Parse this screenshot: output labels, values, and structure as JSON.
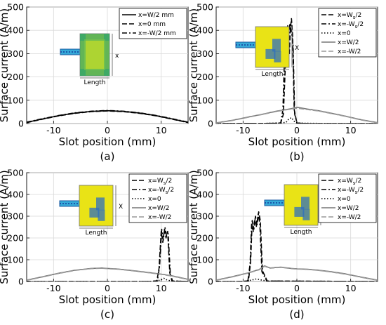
{
  "figure": {
    "panel_labels": [
      "(a)",
      "(b)",
      "(c)",
      "(d)"
    ]
  },
  "chart_data": [
    {
      "type": "line",
      "panel": "(a)",
      "xlabel": "Slot position (mm)",
      "ylabel": "Surface current (A/m)",
      "xlim": [
        -15,
        15
      ],
      "ylim": [
        0,
        500
      ],
      "xticks": [
        -10,
        0,
        10
      ],
      "yticks": [
        0,
        100,
        200,
        300,
        400,
        500
      ],
      "grid": true,
      "legend_position": "top-right",
      "inset": {
        "x_label": "x",
        "length_label": "Length"
      },
      "series": [
        {
          "name": "x=W/2 mm",
          "style": "solid",
          "color": "#000000",
          "x": [
            -15,
            -12,
            -9,
            -6,
            -3,
            -1,
            0,
            1,
            3,
            6,
            9,
            12,
            15
          ],
          "y": [
            5,
            20,
            34,
            45,
            52,
            54,
            55,
            54,
            52,
            45,
            34,
            20,
            5
          ]
        },
        {
          "name": "x=0 mm",
          "style": "dashed",
          "color": "#000000",
          "x": [
            -15,
            -12,
            -9,
            -6,
            -3,
            -1,
            0,
            1,
            3,
            6,
            9,
            12,
            15
          ],
          "y": [
            4,
            19,
            33,
            44,
            51,
            53,
            54,
            53,
            51,
            44,
            33,
            19,
            4
          ]
        },
        {
          "name": "x=-W/2 mm",
          "style": "dashdot",
          "color": "#000000",
          "x": [
            -15,
            -12,
            -9,
            -6,
            -3,
            -1,
            0,
            1,
            3,
            6,
            9,
            12,
            15
          ],
          "y": [
            6,
            21,
            35,
            46,
            53,
            55,
            56,
            55,
            53,
            46,
            35,
            21,
            6
          ]
        }
      ]
    },
    {
      "type": "line",
      "panel": "(b)",
      "xlabel": "Slot position (mm)",
      "ylabel": "Surface current (A/m)",
      "xlim": [
        -15,
        15
      ],
      "ylim": [
        0,
        500
      ],
      "xticks": [
        -10,
        0,
        10
      ],
      "yticks": [
        0,
        100,
        200,
        300,
        400,
        500
      ],
      "grid": true,
      "legend_position": "top-right",
      "inset": {
        "x_label": "X",
        "length_label": "Length"
      },
      "series": [
        {
          "name": "x=Ws/2",
          "legend_main": "x=W",
          "legend_sub": "s",
          "legend_tail": "/2",
          "style": "dashed",
          "color": "#000000",
          "x": [
            -15,
            -4,
            -3,
            -2.5,
            -2,
            -1.7,
            -1.4,
            -1.2,
            -1,
            -0.8,
            -0.5,
            0,
            2,
            15
          ],
          "y": [
            0,
            1,
            3,
            40,
            330,
            420,
            300,
            410,
            450,
            380,
            60,
            2,
            0,
            0
          ]
        },
        {
          "name": "x=-Ws/2",
          "legend_main": "x=-W",
          "legend_sub": "s",
          "legend_tail": "/2",
          "style": "dashdot",
          "color": "#000000",
          "x": [
            -15,
            -4,
            -3,
            -2.6,
            -2.2,
            -1.9,
            -1.6,
            -1.3,
            -1,
            -0.7,
            -0.4,
            0,
            2,
            15
          ],
          "y": [
            0,
            1,
            3,
            60,
            360,
            400,
            310,
            430,
            390,
            340,
            40,
            2,
            0,
            0
          ]
        },
        {
          "name": "x=0",
          "legend_main": "x=0",
          "style": "dotted",
          "color": "#000000",
          "x": [
            -15,
            -10,
            -5,
            -3,
            -2,
            -1.5,
            -1,
            -0.5,
            0,
            3,
            10,
            15
          ],
          "y": [
            0,
            0,
            1,
            2,
            5,
            20,
            25,
            10,
            2,
            1,
            0,
            0
          ]
        },
        {
          "name": "x=W/2",
          "legend_main": "x=W/2",
          "style": "solid",
          "color": "#777777",
          "x": [
            -15,
            -12,
            -9,
            -6,
            -4,
            -2,
            -1,
            0,
            2,
            4,
            6,
            9,
            12,
            15
          ],
          "y": [
            3,
            14,
            28,
            42,
            52,
            60,
            64,
            70,
            62,
            55,
            46,
            32,
            16,
            4
          ]
        },
        {
          "name": "x=-W/2",
          "legend_main": "x=-W/2",
          "style": "dashed",
          "color": "#999999",
          "x": [
            -15,
            -12,
            -9,
            -6,
            -4,
            -2,
            -1,
            0,
            2,
            4,
            6,
            9,
            12,
            15
          ],
          "y": [
            2,
            13,
            27,
            41,
            51,
            59,
            62,
            66,
            60,
            54,
            45,
            31,
            15,
            3
          ]
        }
      ]
    },
    {
      "type": "line",
      "panel": "(c)",
      "xlabel": "Slot position (mm)",
      "ylabel": "Surface current (A/m)",
      "xlim": [
        -15,
        15
      ],
      "ylim": [
        0,
        500
      ],
      "xticks": [
        -10,
        0,
        10
      ],
      "yticks": [
        0,
        100,
        200,
        300,
        400,
        500
      ],
      "grid": true,
      "legend_position": "top-right",
      "inset": {
        "x_label": "X",
        "length_label": "Length"
      },
      "series": [
        {
          "name": "x=Ws/2",
          "legend_main": "x=W",
          "legend_sub": "s",
          "legend_tail": "/2",
          "style": "dashed",
          "color": "#000000",
          "x": [
            -15,
            8,
            9.2,
            9.6,
            10,
            10.3,
            10.6,
            10.9,
            11.2,
            11.6,
            12,
            15
          ],
          "y": [
            0,
            0,
            3,
            60,
            230,
            180,
            240,
            200,
            230,
            40,
            2,
            0
          ]
        },
        {
          "name": "x=-Ws/2",
          "legend_main": "x=-W",
          "legend_sub": "s",
          "legend_tail": "/2",
          "style": "dashdot",
          "color": "#000000",
          "x": [
            -15,
            8,
            9.3,
            9.7,
            10.1,
            10.4,
            10.7,
            11,
            11.3,
            11.7,
            12.1,
            15
          ],
          "y": [
            0,
            0,
            3,
            70,
            240,
            190,
            250,
            210,
            220,
            35,
            2,
            0
          ]
        },
        {
          "name": "x=0",
          "legend_main": "x=0",
          "style": "dotted",
          "color": "#000000",
          "x": [
            -15,
            5,
            9,
            10,
            10.5,
            11,
            12,
            15
          ],
          "y": [
            0,
            0,
            1,
            8,
            15,
            8,
            1,
            0
          ]
        },
        {
          "name": "x=W/2",
          "legend_main": "x=W/2",
          "style": "solid",
          "color": "#777777",
          "x": [
            -15,
            -12,
            -9,
            -6,
            -3,
            -1,
            0,
            2,
            4,
            6,
            8,
            10,
            12,
            15
          ],
          "y": [
            6,
            22,
            38,
            52,
            60,
            62,
            60,
            57,
            52,
            46,
            40,
            34,
            26,
            10
          ]
        },
        {
          "name": "x=-W/2",
          "legend_main": "x=-W/2",
          "style": "dashed",
          "color": "#999999",
          "x": [
            -15,
            -12,
            -9,
            -6,
            -3,
            -1,
            0,
            2,
            4,
            6,
            8,
            10,
            12,
            15
          ],
          "y": [
            5,
            21,
            37,
            51,
            59,
            61,
            59,
            56,
            51,
            45,
            39,
            33,
            25,
            9
          ]
        }
      ]
    },
    {
      "type": "line",
      "panel": "(d)",
      "xlabel": "Slot position (mm)",
      "ylabel": "Surface current (A/m)",
      "xlim": [
        -15,
        15
      ],
      "ylim": [
        0,
        500
      ],
      "xticks": [
        -10,
        0,
        10
      ],
      "yticks": [
        0,
        100,
        200,
        300,
        400,
        500
      ],
      "grid": true,
      "legend_position": "top-right",
      "inset": {
        "x_label": "X",
        "length_label": "Length"
      },
      "series": [
        {
          "name": "x=Ws/2",
          "legend_main": "x=W",
          "legend_sub": "s",
          "legend_tail": "/2",
          "style": "dashed",
          "color": "#000000",
          "x": [
            -15,
            -10,
            -9,
            -8.6,
            -8.3,
            -8,
            -7.7,
            -7.4,
            -7.1,
            -6.8,
            -6.4,
            -5.5,
            15
          ],
          "y": [
            0,
            0,
            3,
            90,
            280,
            240,
            300,
            260,
            320,
            280,
            50,
            2,
            0
          ]
        },
        {
          "name": "x=-Ws/2",
          "legend_main": "x=-W",
          "legend_sub": "s",
          "legend_tail": "/2",
          "style": "dashdot",
          "color": "#000000",
          "x": [
            -15,
            -10,
            -9.1,
            -8.7,
            -8.4,
            -8.1,
            -7.8,
            -7.5,
            -7.2,
            -6.9,
            -6.5,
            -5.6,
            15
          ],
          "y": [
            0,
            0,
            3,
            80,
            270,
            230,
            290,
            250,
            310,
            270,
            45,
            2,
            0
          ]
        },
        {
          "name": "x=0",
          "legend_main": "x=0",
          "style": "dotted",
          "color": "#000000",
          "x": [
            -15,
            -10,
            -8.5,
            -7.5,
            -6.5,
            -5,
            15
          ],
          "y": [
            0,
            0,
            6,
            12,
            6,
            0,
            0
          ]
        },
        {
          "name": "x=W/2",
          "legend_main": "x=W/2",
          "style": "solid",
          "color": "#777777",
          "x": [
            -15,
            -12,
            -9,
            -7,
            -6,
            -5,
            -3,
            -1,
            0,
            2,
            4,
            6,
            9,
            12,
            15
          ],
          "y": [
            6,
            22,
            40,
            55,
            72,
            62,
            66,
            60,
            58,
            56,
            52,
            46,
            35,
            20,
            6
          ]
        },
        {
          "name": "x=-W/2",
          "legend_main": "x=-W/2",
          "style": "dashed",
          "color": "#999999",
          "x": [
            -15,
            -12,
            -9,
            -7,
            -6,
            -5,
            -3,
            -1,
            0,
            2,
            4,
            6,
            9,
            12,
            15
          ],
          "y": [
            5,
            21,
            39,
            54,
            70,
            61,
            65,
            59,
            57,
            55,
            51,
            45,
            34,
            19,
            5
          ]
        }
      ]
    }
  ]
}
